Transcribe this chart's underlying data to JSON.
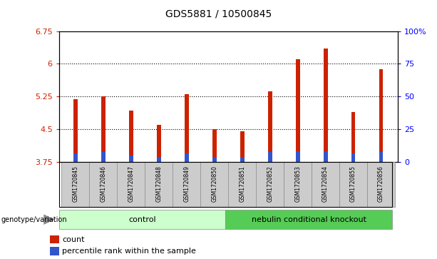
{
  "title": "GDS5881 / 10500845",
  "samples": [
    "GSM1720845",
    "GSM1720846",
    "GSM1720847",
    "GSM1720848",
    "GSM1720849",
    "GSM1720850",
    "GSM1720851",
    "GSM1720852",
    "GSM1720853",
    "GSM1720854",
    "GSM1720855",
    "GSM1720856"
  ],
  "count_values": [
    5.18,
    5.25,
    4.92,
    4.6,
    5.3,
    4.5,
    4.45,
    5.36,
    6.1,
    6.35,
    4.9,
    5.87
  ],
  "percentile_values": [
    3.95,
    3.97,
    3.9,
    3.87,
    3.95,
    3.87,
    3.87,
    3.97,
    4.0,
    4.0,
    3.95,
    3.97
  ],
  "base_value": 3.75,
  "ylim_left": [
    3.75,
    6.75
  ],
  "ylim_right": [
    0,
    100
  ],
  "yticks_left": [
    3.75,
    4.5,
    5.25,
    6.0,
    6.75
  ],
  "yticks_left_labels": [
    "3.75",
    "4.5",
    "5.25",
    "6",
    "6.75"
  ],
  "yticks_right": [
    0,
    25,
    50,
    75,
    100
  ],
  "yticks_right_labels": [
    "0",
    "25",
    "50",
    "75",
    "100%"
  ],
  "hlines": [
    4.5,
    5.25,
    6.0
  ],
  "ctrl_n": 6,
  "ko_n": 6,
  "control_label": "control",
  "knockout_label": "nebulin conditional knockout",
  "genotype_label": "genotype/variation",
  "bar_color_red": "#cc2200",
  "bar_color_blue": "#3355cc",
  "control_bg": "#ccffcc",
  "knockout_bg": "#55cc55",
  "tick_bg": "#cccccc",
  "bar_width": 0.15,
  "legend_count": "count",
  "legend_pct": "percentile rank within the sample"
}
